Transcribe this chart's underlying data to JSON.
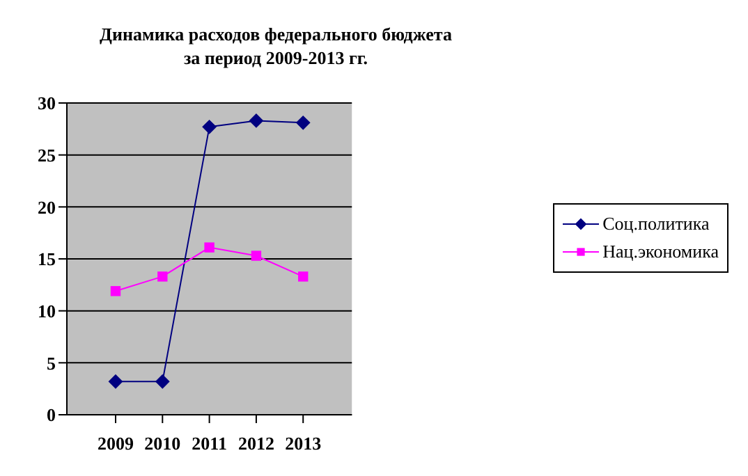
{
  "chart_data": {
    "type": "line",
    "title": "Динамика расходов федерального бюджета\nза период  2009-2013 гг.",
    "categories": [
      "2009",
      "2010",
      "2011",
      "2012",
      "2013"
    ],
    "series": [
      {
        "name": "Соц.политика",
        "color": "#000080",
        "marker": "diamond",
        "values": [
          3.2,
          3.2,
          27.7,
          28.3,
          28.1
        ]
      },
      {
        "name": "Нац.экономика",
        "color": "#ff00ff",
        "marker": "square",
        "values": [
          11.9,
          13.3,
          16.1,
          15.3,
          13.3
        ]
      }
    ],
    "ylim": [
      0,
      30
    ],
    "yticks": [
      0,
      5,
      10,
      15,
      20,
      25,
      30
    ],
    "grid": "y",
    "legend": "right"
  }
}
